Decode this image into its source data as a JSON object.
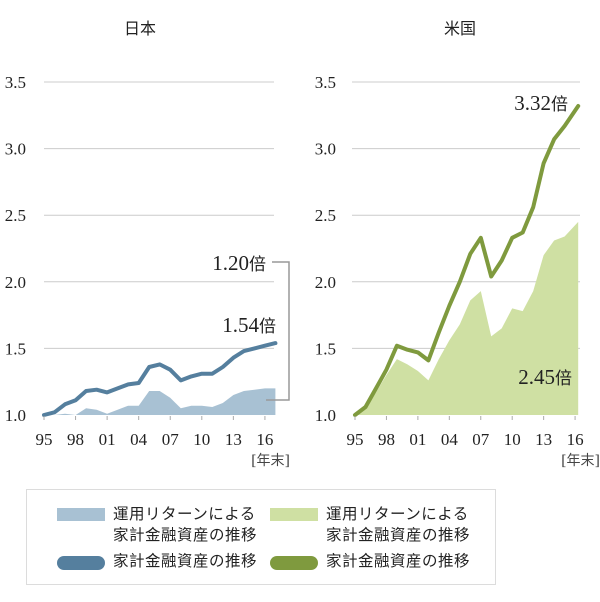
{
  "colors": {
    "japan_area": "#a8c1d3",
    "japan_line": "#557f9e",
    "us_area": "#cfe0a3",
    "us_line": "#7f9a3e",
    "grid": "#cccccc",
    "bracket": "#999999"
  },
  "chart_data": [
    {
      "type": "line",
      "title": "日本",
      "xlabel": "",
      "x_unit_label": "[年末]",
      "ylabel": "",
      "ylim": [
        1.0,
        3.5
      ],
      "yticks": [
        "1.0",
        "1.5",
        "2.0",
        "2.5",
        "3.0",
        "3.5"
      ],
      "ytick_values": [
        1.0,
        1.5,
        2.0,
        2.5,
        3.0,
        3.5
      ],
      "xtick_labels": [
        "95",
        "98",
        "01",
        "04",
        "07",
        "10",
        "13",
        "16"
      ],
      "xtick_years": [
        1995,
        1998,
        2001,
        2004,
        2007,
        2010,
        2013,
        2016
      ],
      "x": [
        1995,
        1996,
        1997,
        1998,
        1999,
        2000,
        2001,
        2002,
        2003,
        2004,
        2005,
        2006,
        2007,
        2008,
        2009,
        2010,
        2011,
        2012,
        2013,
        2014,
        2015,
        2016,
        2017
      ],
      "grid": true,
      "series": [
        {
          "name": "運用リターンによる家計金融資産の推移",
          "kind": "area",
          "values": [
            1.0,
            1.0,
            1.01,
            1.0,
            1.05,
            1.04,
            1.01,
            1.04,
            1.07,
            1.07,
            1.18,
            1.18,
            1.13,
            1.05,
            1.07,
            1.07,
            1.06,
            1.09,
            1.15,
            1.18,
            1.19,
            1.2,
            1.2
          ]
        },
        {
          "name": "家計金融資産の推移",
          "kind": "line",
          "values": [
            1.0,
            1.02,
            1.08,
            1.11,
            1.18,
            1.19,
            1.17,
            1.2,
            1.23,
            1.24,
            1.36,
            1.38,
            1.34,
            1.26,
            1.29,
            1.31,
            1.31,
            1.36,
            1.43,
            1.48,
            1.5,
            1.52,
            1.54
          ]
        }
      ],
      "annotations": {
        "area_end": {
          "number": "1.20",
          "suffix": "倍"
        },
        "line_end": {
          "number": "1.54",
          "suffix": "倍"
        }
      }
    },
    {
      "type": "line",
      "title": "米国",
      "xlabel": "",
      "x_unit_label": "[年末]",
      "ylabel": "",
      "ylim": [
        1.0,
        3.5
      ],
      "yticks": [
        "1.0",
        "1.5",
        "2.0",
        "2.5",
        "3.0",
        "3.5"
      ],
      "ytick_values": [
        1.0,
        1.5,
        2.0,
        2.5,
        3.0,
        3.5
      ],
      "xtick_labels": [
        "95",
        "98",
        "01",
        "04",
        "07",
        "10",
        "13",
        "16"
      ],
      "xtick_years": [
        1995,
        1998,
        2001,
        2004,
        2007,
        2010,
        2013,
        2016
      ],
      "x": [
        1995,
        1996,
        1997,
        1998,
        1999,
        2000,
        2001,
        2002,
        2003,
        2004,
        2005,
        2006,
        2007,
        2008,
        2009,
        2010,
        2011,
        2012,
        2013,
        2014,
        2015,
        2016.3
      ],
      "grid": true,
      "series": [
        {
          "name": "運用リターンによる家計金融資産の推移",
          "kind": "area",
          "values": [
            1.0,
            1.05,
            1.17,
            1.3,
            1.42,
            1.38,
            1.33,
            1.26,
            1.42,
            1.56,
            1.68,
            1.86,
            1.93,
            1.59,
            1.65,
            1.8,
            1.78,
            1.93,
            2.2,
            2.31,
            2.34,
            2.45
          ]
        },
        {
          "name": "家計金融資産の推移",
          "kind": "line",
          "values": [
            1.0,
            1.06,
            1.2,
            1.34,
            1.52,
            1.49,
            1.47,
            1.41,
            1.62,
            1.82,
            2.0,
            2.21,
            2.33,
            2.04,
            2.16,
            2.33,
            2.37,
            2.56,
            2.89,
            3.07,
            3.17,
            3.32
          ]
        }
      ],
      "annotations": {
        "area_end": {
          "number": "2.45",
          "suffix": "倍"
        },
        "line_end": {
          "number": "3.32",
          "suffix": "倍"
        }
      }
    }
  ],
  "legend": {
    "japan_area_line1": "運用リターンによる",
    "japan_area_line2": "家計金融資産の推移",
    "japan_line": "家計金融資産の推移",
    "us_area_line1": "運用リターンによる",
    "us_area_line2": "家計金融資産の推移",
    "us_line": "家計金融資産の推移"
  }
}
